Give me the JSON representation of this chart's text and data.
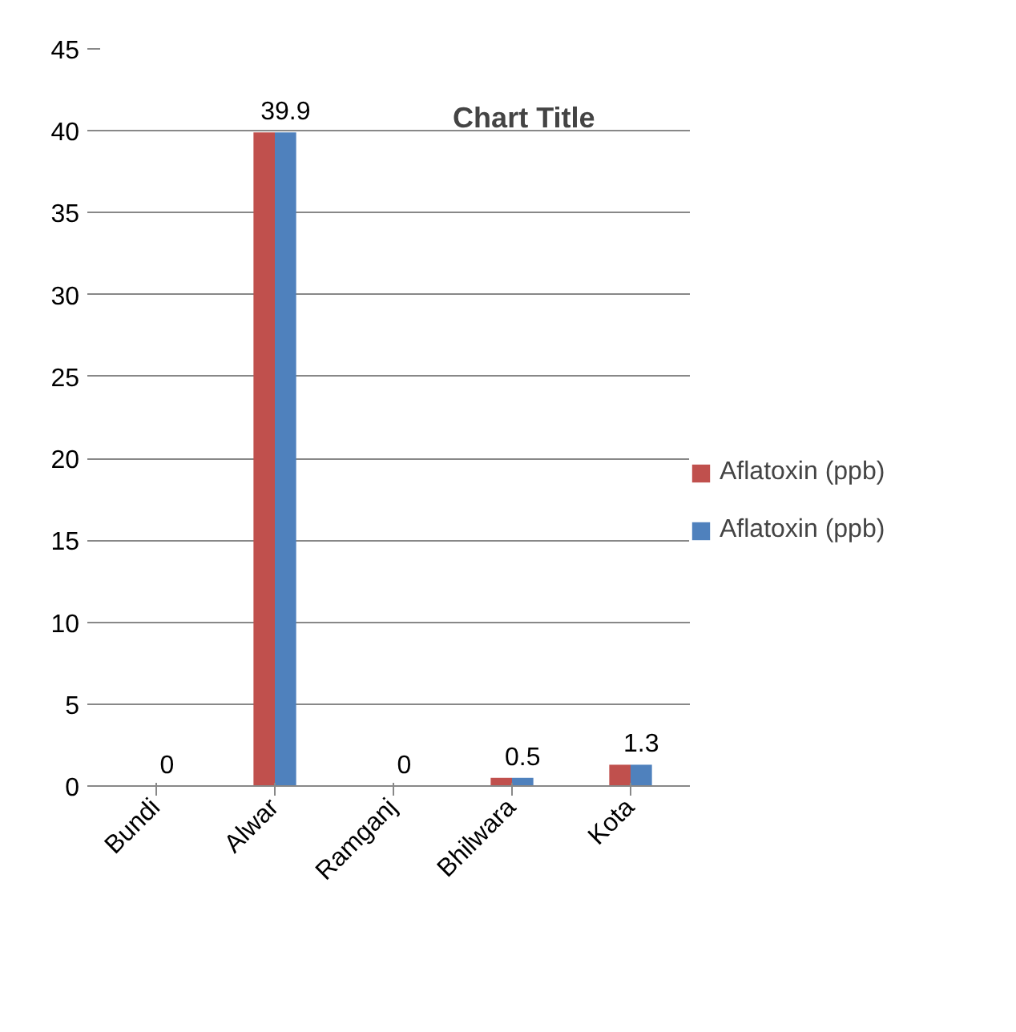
{
  "chart_data": {
    "type": "bar",
    "title": "Chart Title",
    "categories": [
      "Bundi",
      "Alwar",
      "Ramganj",
      "Bhilwara",
      "Kota"
    ],
    "series": [
      {
        "name": "Aflatoxin (ppb)",
        "color": "#c0504d",
        "values": [
          0,
          39.9,
          0,
          0.5,
          1.3
        ]
      },
      {
        "name": "Aflatoxin (ppb)",
        "color": "#4f81bd",
        "values": [
          0,
          39.9,
          0,
          0.5,
          1.3
        ],
        "value_labels": [
          "0",
          "39.9",
          "0",
          "0.5",
          "1.3"
        ]
      }
    ],
    "ylim": [
      0,
      45
    ],
    "yticks": [
      0,
      5,
      10,
      15,
      20,
      25,
      30,
      35,
      40,
      45
    ],
    "grid": "y",
    "legend": "right"
  }
}
